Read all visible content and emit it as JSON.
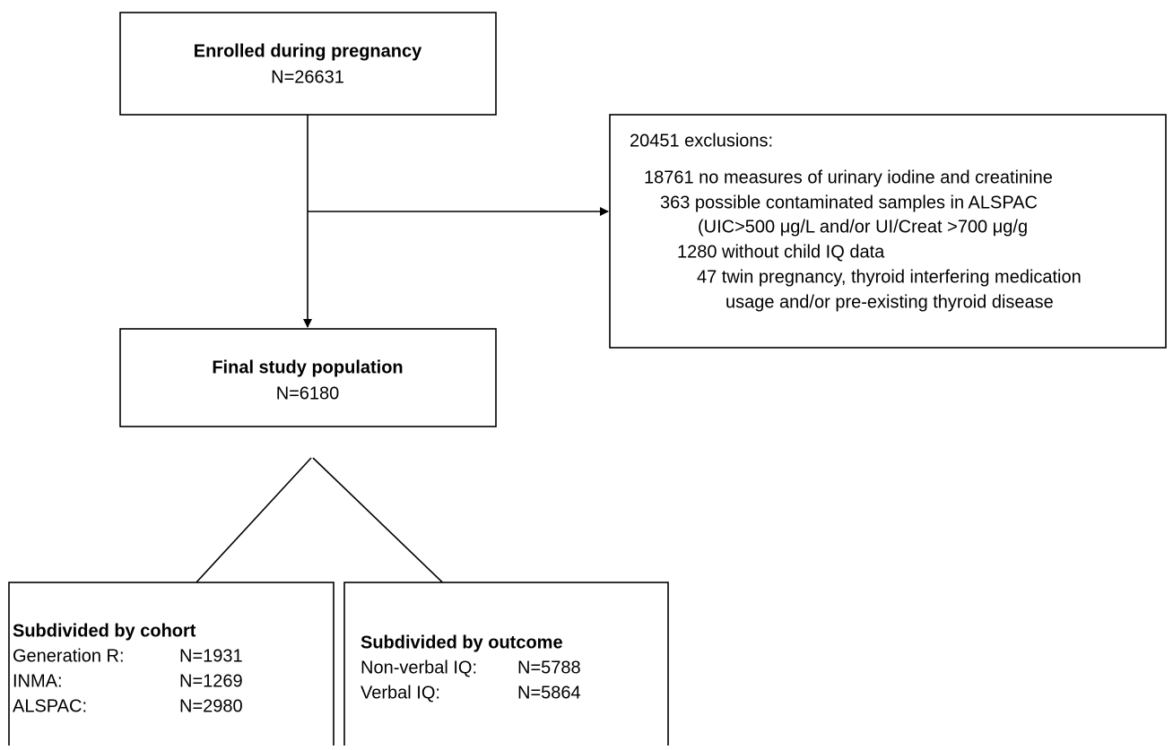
{
  "nodes": [
    {
      "title": "Enrolled during pregnancy",
      "count": "N=26631"
    },
    {
      "title": "Final study population",
      "count": "N=6180"
    }
  ],
  "exclusions": {
    "lines": [
      "20451 exclusions:",
      "18761 no measures of urinary iodine and creatinine",
      "363 possible contaminated samples in ALSPAC",
      "(UIC>500 μg/L and/or UI/Creat >700 μg/g",
      "1280 without child IQ data",
      "47 twin pregnancy, thyroid interfering medication",
      "usage and/or pre-existing thyroid disease"
    ]
  },
  "subgroups": [
    {
      "title": "Subdivided by cohort",
      "rows": [
        [
          "Generation R:",
          "N=1931"
        ],
        [
          "INMA:",
          "N=1269"
        ],
        [
          "ALSPAC:",
          "N=2980"
        ]
      ]
    },
    {
      "title": "Subdivided by outcome",
      "rows": [
        [
          "Non-verbal IQ:",
          "N=5788"
        ],
        [
          "Verbal IQ:",
          "N=5864"
        ]
      ]
    }
  ]
}
